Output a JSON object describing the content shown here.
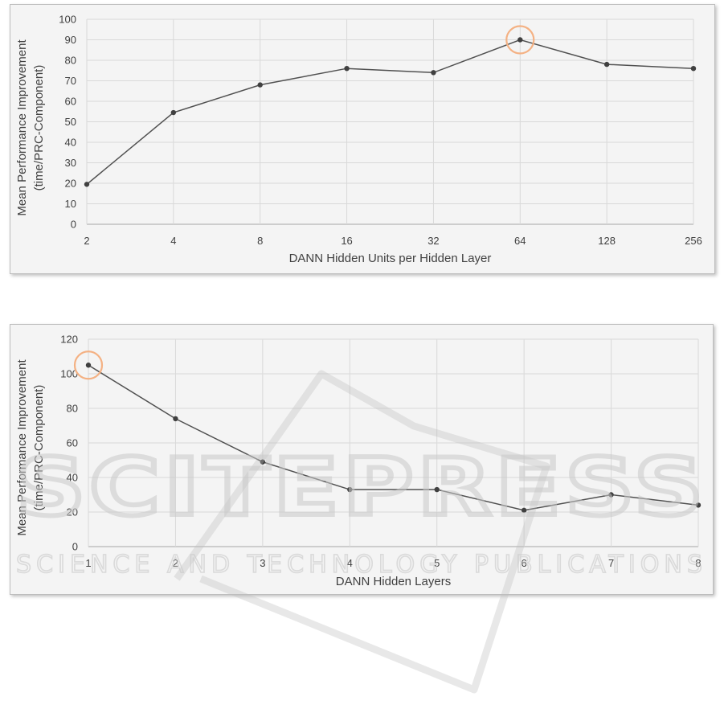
{
  "chart_data": [
    {
      "type": "line",
      "xlabel": "DANN Hidden Units per Hidden Layer",
      "ylabel_lines": [
        "Mean Performance Improvement",
        "(time/PRC-Component)"
      ],
      "categories": [
        "2",
        "4",
        "8",
        "16",
        "32",
        "64",
        "128",
        "256"
      ],
      "values": [
        19.5,
        54.5,
        68,
        76,
        74,
        90,
        78,
        76
      ],
      "ylim": [
        0,
        100
      ],
      "yticks": [
        0,
        10,
        20,
        30,
        40,
        50,
        60,
        70,
        80,
        90,
        100
      ],
      "highlight_index": 5,
      "grid": true,
      "line_color": "#505050",
      "highlight_color": "#f4b183"
    },
    {
      "type": "line",
      "xlabel": "DANN Hidden Layers",
      "ylabel_lines": [
        "Mean Performance Improvement",
        "(time/PRC-Component)"
      ],
      "categories": [
        "1",
        "2",
        "3",
        "4",
        "5",
        "6",
        "7",
        "8"
      ],
      "values": [
        105,
        74,
        49,
        33,
        33,
        21,
        30,
        24
      ],
      "ylim": [
        0,
        120
      ],
      "yticks": [
        0,
        20,
        40,
        60,
        80,
        100,
        120
      ],
      "highlight_index": 0,
      "grid": true,
      "line_color": "#505050",
      "highlight_color": "#f4b183"
    }
  ],
  "watermark": {
    "main": "SCITEPRESS",
    "sub": "SCIENCE AND TECHNOLOGY PUBLICATIONS"
  }
}
